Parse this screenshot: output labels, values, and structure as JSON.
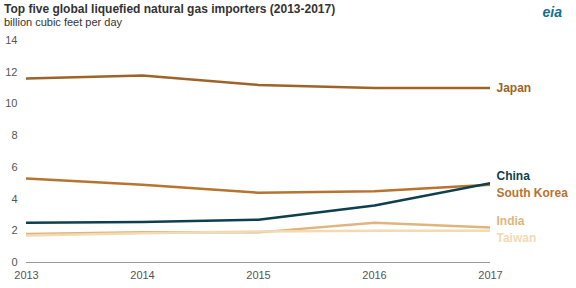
{
  "chart_data": {
    "type": "line",
    "title": "Top five global liquefied natural gas importers (2013-2017)",
    "subtitle": "billion cubic feet per day",
    "annotations": [
      "eia"
    ],
    "x": [
      2013,
      2014,
      2015,
      2016,
      2017
    ],
    "series": [
      {
        "name": "Japan",
        "color": "#9e6328",
        "values": [
          11.6,
          11.8,
          11.2,
          11.0,
          11.0
        ]
      },
      {
        "name": "South Korea",
        "color": "#b8732e",
        "values": [
          5.3,
          4.9,
          4.4,
          4.5,
          4.9
        ]
      },
      {
        "name": "China",
        "color": "#0d3f4f",
        "values": [
          2.5,
          2.55,
          2.7,
          3.6,
          5.0
        ]
      },
      {
        "name": "India",
        "color": "#e0b57c",
        "values": [
          1.8,
          1.9,
          1.9,
          2.5,
          2.2
        ]
      },
      {
        "name": "Taiwan",
        "color": "#f2dab4",
        "values": [
          1.7,
          1.85,
          1.95,
          2.0,
          2.0
        ]
      }
    ],
    "xlim": [
      2013,
      2017
    ],
    "xticks": [
      2013,
      2014,
      2015,
      2016,
      2017
    ],
    "ylim": [
      0,
      14
    ],
    "yticks": [
      0,
      2,
      4,
      6,
      8,
      10,
      12,
      14
    ],
    "grid": false
  }
}
